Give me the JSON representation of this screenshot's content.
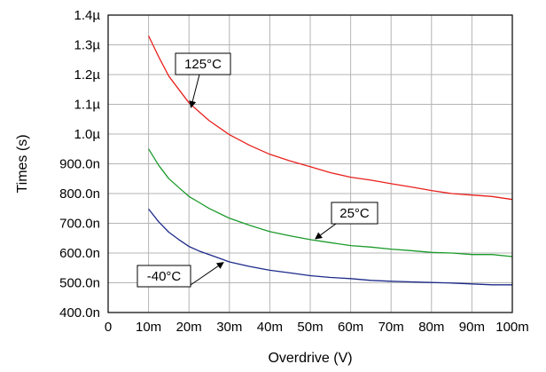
{
  "chart_data": {
    "type": "line",
    "title": "",
    "xlabel": "Overdrive (V)",
    "ylabel": "Times (s)",
    "xlim": [
      0,
      0.1
    ],
    "ylim": [
      4e-07,
      1.4e-06
    ],
    "grid": true,
    "x_ticks": [
      0,
      0.01,
      0.02,
      0.03,
      0.04,
      0.05,
      0.06,
      0.07,
      0.08,
      0.09,
      0.1
    ],
    "x_tick_labels": [
      "0",
      "10m",
      "20m",
      "30m",
      "40m",
      "50m",
      "60m",
      "70m",
      "80m",
      "90m",
      "100m"
    ],
    "y_ticks": [
      4e-07,
      5e-07,
      6e-07,
      7e-07,
      8e-07,
      9e-07,
      1e-06,
      1.1e-06,
      1.2e-06,
      1.3e-06,
      1.4e-06
    ],
    "y_tick_labels": [
      "400.0n",
      "500.0n",
      "600.0n",
      "700.0n",
      "800.0n",
      "900.0n",
      "1.0µ",
      "1.1µ",
      "1.2µ",
      "1.3µ",
      "1.4µ"
    ],
    "series": [
      {
        "name": "125°C",
        "color": "#e8201c",
        "x": [
          0.01,
          0.0125,
          0.015,
          0.0175,
          0.02,
          0.0225,
          0.025,
          0.03,
          0.035,
          0.04,
          0.045,
          0.05,
          0.055,
          0.06,
          0.065,
          0.07,
          0.075,
          0.08,
          0.085,
          0.09,
          0.095,
          0.1
        ],
        "y": [
          1.33e-06,
          1.26e-06,
          1.195e-06,
          1.15e-06,
          1.105e-06,
          1.075e-06,
          1.045e-06,
          9.98e-07,
          9.62e-07,
          9.32e-07,
          9.1e-07,
          8.9e-07,
          8.7e-07,
          8.55e-07,
          8.45e-07,
          8.33e-07,
          8.22e-07,
          8.1e-07,
          8e-07,
          7.95e-07,
          7.9e-07,
          7.8e-07
        ]
      },
      {
        "name": "25°C",
        "color": "#1a9a2a",
        "x": [
          0.01,
          0.0125,
          0.015,
          0.0175,
          0.02,
          0.0225,
          0.025,
          0.03,
          0.035,
          0.04,
          0.045,
          0.05,
          0.055,
          0.06,
          0.065,
          0.07,
          0.075,
          0.08,
          0.085,
          0.09,
          0.095,
          0.1
        ],
        "y": [
          9.5e-07,
          8.95e-07,
          8.5e-07,
          8.2e-07,
          7.9e-07,
          7.7e-07,
          7.5e-07,
          7.17e-07,
          6.93e-07,
          6.72e-07,
          6.58e-07,
          6.45e-07,
          6.35e-07,
          6.25e-07,
          6.2e-07,
          6.13e-07,
          6.08e-07,
          6.02e-07,
          6e-07,
          5.95e-07,
          5.95e-07,
          5.88e-07
        ]
      },
      {
        "name": "-40°C",
        "color": "#1c2a8a",
        "x": [
          0.01,
          0.0125,
          0.015,
          0.0175,
          0.02,
          0.0225,
          0.025,
          0.03,
          0.035,
          0.04,
          0.045,
          0.05,
          0.055,
          0.06,
          0.065,
          0.07,
          0.075,
          0.08,
          0.085,
          0.09,
          0.095,
          0.1
        ],
        "y": [
          7.48e-07,
          7.05e-07,
          6.7e-07,
          6.45e-07,
          6.22e-07,
          6.07e-07,
          5.95e-07,
          5.7e-07,
          5.55e-07,
          5.42e-07,
          5.33e-07,
          5.24e-07,
          5.18e-07,
          5.14e-07,
          5.08e-07,
          5.05e-07,
          5.03e-07,
          5.01e-07,
          4.99e-07,
          4.96e-07,
          4.93e-07,
          4.93e-07
        ]
      }
    ],
    "annotations": [
      {
        "text": "125°C",
        "arrow_to": [
          0.0205,
          1.09e-06
        ]
      },
      {
        "text": "25°C",
        "arrow_to": [
          0.0513,
          6.48e-07
        ]
      },
      {
        "text": "-40°C",
        "arrow_to": [
          0.0285,
          5.68e-07
        ]
      }
    ]
  }
}
